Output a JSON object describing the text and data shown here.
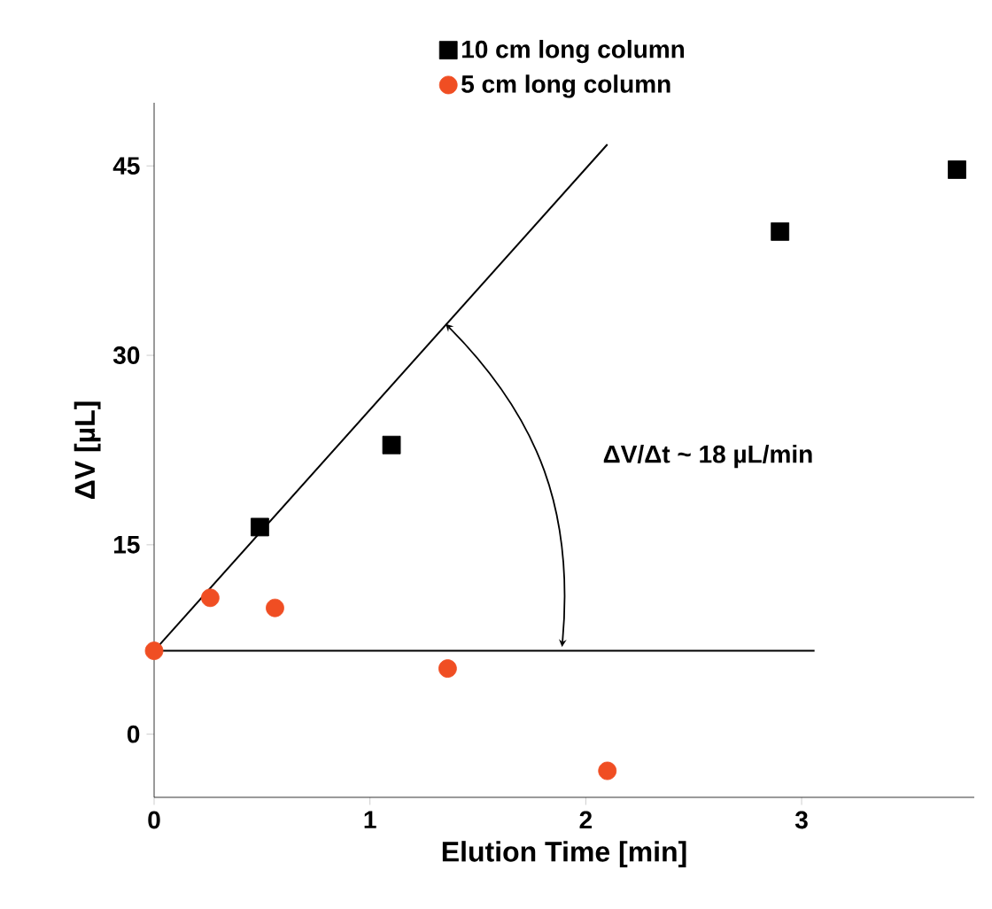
{
  "chart_data": {
    "type": "scatter",
    "xlabel": "Elution Time [min]",
    "ylabel": "ΔV [µL]",
    "xlim": [
      0,
      3.8
    ],
    "ylim": [
      -5,
      50
    ],
    "xticks": [
      0,
      1,
      2,
      3
    ],
    "yticks": [
      0,
      15,
      30,
      45
    ],
    "series": [
      {
        "name": "10 cm long column",
        "color": "#000000",
        "marker": "square",
        "x": [
          0.49,
          1.1,
          2.9,
          3.72
        ],
        "values": [
          16.4,
          22.9,
          39.8,
          44.7
        ]
      },
      {
        "name": "5 cm long column",
        "color": "#f04e23",
        "marker": "circle",
        "x": [
          0,
          0.26,
          0.56,
          1.36,
          2.1
        ],
        "values": [
          6.6,
          10.8,
          10.0,
          5.2,
          -2.9
        ]
      },
      {
        "type": "line",
        "color": "#000000",
        "marker": "none",
        "x": [
          0,
          2.1
        ],
        "values": [
          6.6,
          46.7
        ]
      },
      {
        "type": "line",
        "color": "#000000",
        "marker": "none",
        "x": [
          0,
          3.06
        ],
        "values": [
          6.6,
          6.6
        ]
      }
    ],
    "annotations": [
      "ΔV/Δt ~ 18 µL/min"
    ],
    "legend": "top",
    "grid": false
  }
}
